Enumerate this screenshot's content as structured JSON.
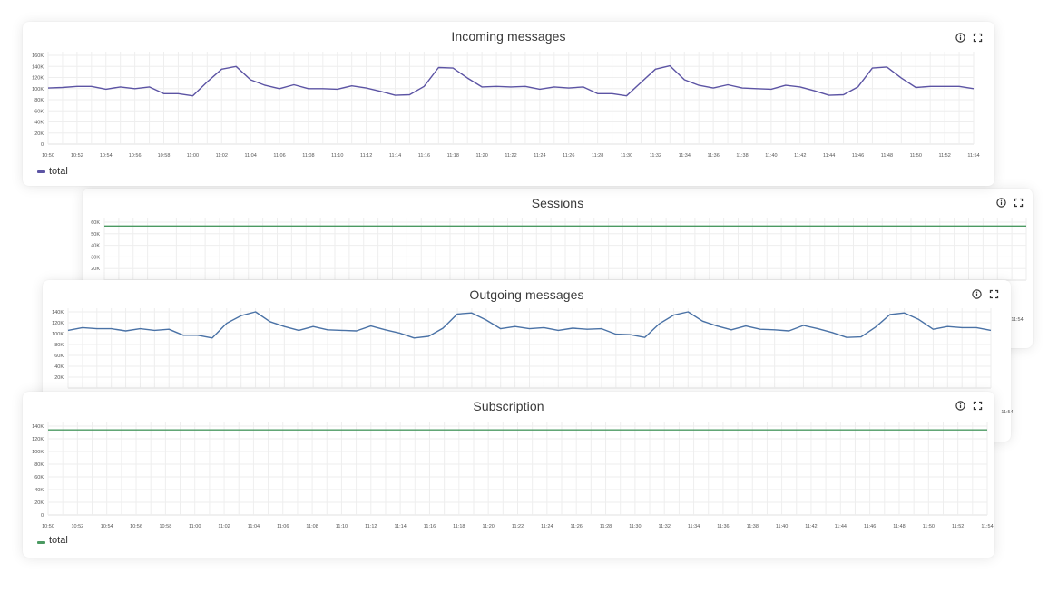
{
  "colors": {
    "purple": "#5c54a4",
    "green": "#4b9a62",
    "blue": "#4a72a6",
    "grid": "#eeeeee"
  },
  "icons": {
    "info": "info-icon",
    "fullscreen": "fullscreen-icon"
  },
  "time_ticks": [
    "10:50",
    "10:52",
    "10:54",
    "10:56",
    "10:58",
    "11:00",
    "11:02",
    "11:04",
    "11:06",
    "11:08",
    "11:10",
    "11:12",
    "11:14",
    "11:16",
    "11:18",
    "11:20",
    "11:22",
    "11:24",
    "11:26",
    "11:28",
    "11:30",
    "11:32",
    "11:34",
    "11:36",
    "11:38",
    "11:40",
    "11:42",
    "11:44",
    "11:46",
    "11:48",
    "11:50",
    "11:52",
    "11:54"
  ],
  "cards": {
    "sessions": {
      "title": "Sessions",
      "chart_data": {
        "type": "line",
        "ylim": [
          0,
          60000
        ],
        "y_ticks": [
          "60K",
          "50K",
          "40K",
          "30K",
          "20K"
        ],
        "visible_x_tick": "11:54",
        "series": [
          {
            "color": "#4b9a62",
            "values": [
              56000,
              56000
            ]
          }
        ]
      }
    },
    "outgoing": {
      "title": "Outgoing messages",
      "chart_data": {
        "type": "line",
        "ylim": [
          0,
          140000
        ],
        "y_ticks": [
          "140K",
          "120K",
          "100K",
          "80K",
          "60K",
          "40K",
          "20K"
        ],
        "visible_x_tick": "11:54",
        "series": [
          {
            "color": "#4a72a6",
            "values": [
              106000,
              111000,
              109000,
              109000,
              105000,
              109000,
              106000,
              108000,
              97000,
              97000,
              92000,
              119000,
              133000,
              140000,
              122000,
              113000,
              106000,
              113000,
              107000,
              106000,
              105000,
              114000,
              107000,
              101000,
              92000,
              95000,
              110000,
              136000,
              138000,
              125000,
              109000,
              113000,
              109000,
              111000,
              106000,
              110000,
              108000,
              109000,
              99000,
              98000,
              93000,
              118000,
              134000,
              140000,
              123000,
              114000,
              107000,
              114000,
              108000,
              107000,
              105000,
              115000,
              109000,
              102000,
              93000,
              94000,
              112000,
              135000,
              138000,
              126000,
              108000,
              113000,
              111000,
              111000,
              106000
            ]
          }
        ]
      }
    },
    "incoming": {
      "title": "Incoming messages",
      "legend": "total",
      "chart_data": {
        "type": "line",
        "ylim": [
          0,
          160000
        ],
        "y_ticks": [
          "160K",
          "140K",
          "120K",
          "100K",
          "80K",
          "60K",
          "40K",
          "20K",
          "0"
        ],
        "series": [
          {
            "name": "total",
            "color": "#5c54a4",
            "values": [
              101000,
              102000,
              104000,
              104000,
              99000,
              103000,
              100000,
              103000,
              91000,
              91000,
              87000,
              112000,
              135000,
              140000,
              116000,
              106000,
              100000,
              107000,
              100000,
              100000,
              99000,
              105000,
              101000,
              95000,
              88000,
              89000,
              104000,
              138000,
              137000,
              119000,
              103000,
              104000,
              103000,
              104000,
              99000,
              103000,
              101000,
              103000,
              91000,
              91000,
              87000,
              111000,
              135000,
              141000,
              116000,
              106000,
              101000,
              107000,
              101000,
              100000,
              99000,
              106000,
              103000,
              96000,
              88000,
              89000,
              103000,
              137000,
              139000,
              119000,
              102000,
              104000,
              104000,
              104000,
              100000
            ]
          }
        ]
      }
    },
    "subscription": {
      "title": "Subscription",
      "legend": "total",
      "chart_data": {
        "type": "line",
        "ylim": [
          0,
          140000
        ],
        "y_ticks": [
          "140K",
          "120K",
          "100K",
          "80K",
          "60K",
          "40K",
          "20K",
          "0"
        ],
        "series": [
          {
            "name": "total",
            "color": "#4b9a62",
            "values": [
              134000,
              134000
            ]
          }
        ]
      }
    }
  }
}
